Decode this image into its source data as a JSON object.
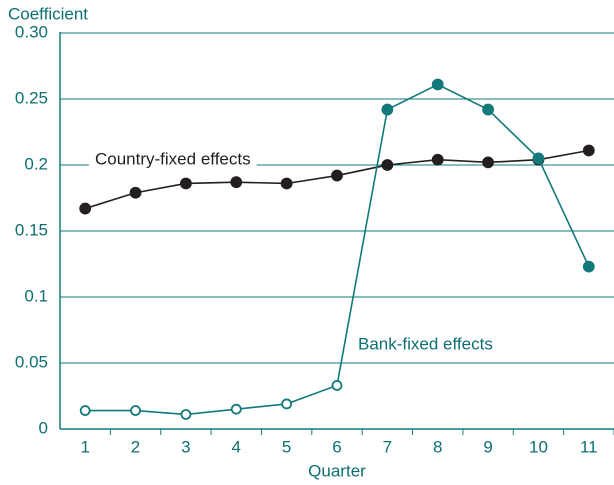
{
  "chart_data": {
    "type": "line",
    "y_label": "Coefficient",
    "x_label": "Quarter",
    "x": [
      1,
      2,
      3,
      4,
      5,
      6,
      7,
      8,
      9,
      10,
      11
    ],
    "xlim": [
      0.5,
      11.5
    ],
    "xticks": [
      1,
      2,
      3,
      4,
      5,
      6,
      7,
      8,
      9,
      10,
      11
    ],
    "ylim": [
      0,
      0.3
    ],
    "yticks": [
      0,
      0.05,
      0.1,
      0.15,
      0.2,
      0.25,
      {
        "value": 0.3,
        "label": "0.30"
      }
    ],
    "grid": true,
    "series": [
      {
        "name": "Country-fixed effects",
        "color": "#231f20",
        "values": [
          0.167,
          0.179,
          0.186,
          0.187,
          0.186,
          0.192,
          0.2,
          0.204,
          0.202,
          0.204,
          0.211
        ],
        "marker_filled": [
          true,
          true,
          true,
          true,
          true,
          true,
          true,
          true,
          true,
          true,
          true
        ]
      },
      {
        "name": "Bank-fixed effects",
        "color": "#137a7c",
        "values": [
          0.014,
          0.014,
          0.011,
          0.015,
          0.019,
          0.033,
          0.242,
          0.261,
          0.242,
          0.205,
          0.123
        ],
        "marker_filled": [
          false,
          false,
          false,
          false,
          false,
          false,
          true,
          true,
          true,
          true,
          true
        ]
      }
    ]
  }
}
